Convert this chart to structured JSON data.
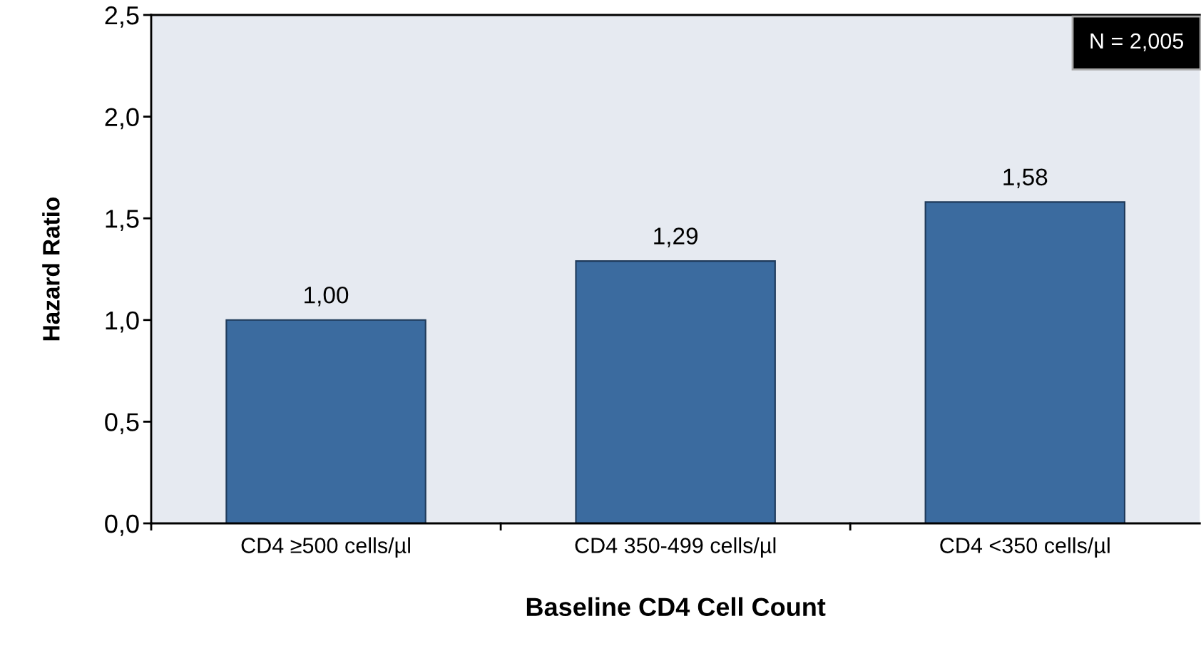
{
  "chart_data": {
    "type": "bar",
    "categories": [
      "CD4 ≥500 cells/µl",
      "CD4 350-499 cells/µl",
      "CD4 <350 cells/µl"
    ],
    "values": [
      1.0,
      1.29,
      1.58
    ],
    "value_labels": [
      "1,00",
      "1,29",
      "1,58"
    ],
    "color": "#3b6b9f",
    "xlabel": "Baseline CD4 Cell Count",
    "ylabel": "Hazard Ratio",
    "ylim": [
      0,
      2.5
    ],
    "yticks": [
      {
        "value": 0,
        "label": "0,0"
      },
      {
        "value": 0.5,
        "label": "0,5"
      },
      {
        "value": 1.0,
        "label": "1,0"
      },
      {
        "value": 1.5,
        "label": "1,5"
      },
      {
        "value": 2.0,
        "label": "2,0"
      },
      {
        "value": 2.5,
        "label": "2,5"
      }
    ],
    "annotations": [
      "N = 2,005"
    ],
    "grid": false,
    "legend": false
  }
}
